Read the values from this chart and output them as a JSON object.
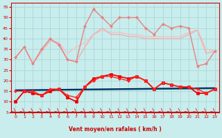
{
  "xlabel": "Vent moyen/en rafales ( km/h )",
  "xlim": [
    -0.5,
    23.5
  ],
  "ylim": [
    5,
    57
  ],
  "yticks": [
    5,
    10,
    15,
    20,
    25,
    30,
    35,
    40,
    45,
    50,
    55
  ],
  "xticks": [
    0,
    1,
    2,
    3,
    4,
    5,
    6,
    7,
    8,
    9,
    10,
    11,
    12,
    13,
    14,
    15,
    16,
    17,
    18,
    19,
    20,
    21,
    22,
    23
  ],
  "background_color": "#c9ecec",
  "grid_color": "#a8d8d8",
  "series": [
    {
      "name": "light_pink_area1",
      "color": "#f5c0c0",
      "linewidth": 1.0,
      "marker": null,
      "zorder": 2,
      "data_x": [
        0,
        1,
        2,
        3,
        4,
        5,
        6,
        7,
        8,
        9,
        10,
        11,
        12,
        13,
        14,
        15,
        16,
        17,
        18,
        19,
        20,
        21,
        22,
        23
      ],
      "data_y": [
        31,
        36,
        28,
        34,
        39,
        38,
        33,
        36,
        38,
        42,
        44,
        43,
        43,
        42,
        42,
        41,
        41,
        41,
        41,
        41,
        43,
        44,
        35,
        34
      ]
    },
    {
      "name": "light_pink_area2",
      "color": "#f0b0b0",
      "linewidth": 1.0,
      "marker": null,
      "zorder": 2,
      "data_x": [
        0,
        1,
        2,
        3,
        4,
        5,
        6,
        7,
        8,
        9,
        10,
        11,
        12,
        13,
        14,
        15,
        16,
        17,
        18,
        19,
        20,
        21,
        22,
        23
      ],
      "data_y": [
        31,
        36,
        28,
        34,
        39,
        38,
        30,
        29,
        36,
        42,
        45,
        42,
        42,
        41,
        41,
        40,
        40,
        40,
        40,
        40,
        42,
        44,
        33,
        34
      ]
    },
    {
      "name": "salmon_spiky",
      "color": "#e88080",
      "linewidth": 1.0,
      "marker": "D",
      "markersize": 2.0,
      "zorder": 3,
      "data_x": [
        0,
        1,
        2,
        3,
        4,
        5,
        6,
        7,
        8,
        9,
        10,
        11,
        12,
        13,
        14,
        15,
        16,
        17,
        18,
        19,
        20,
        21,
        22,
        23
      ],
      "data_y": [
        31,
        36,
        28,
        35,
        40,
        37,
        30,
        29,
        46,
        54,
        50,
        46,
        50,
        50,
        50,
        45,
        42,
        47,
        45,
        46,
        45,
        27,
        28,
        34
      ]
    },
    {
      "name": "dark_navy_flat",
      "color": "#000066",
      "linewidth": 1.3,
      "marker": null,
      "zorder": 4,
      "data_x": [
        0,
        23
      ],
      "data_y": [
        15.5,
        16.5
      ]
    },
    {
      "name": "dark_teal_flat",
      "color": "#006666",
      "linewidth": 1.0,
      "marker": null,
      "zorder": 4,
      "data_x": [
        0,
        23
      ],
      "data_y": [
        15.2,
        16.2
      ]
    },
    {
      "name": "red_lower_square",
      "color": "#ee0000",
      "linewidth": 1.3,
      "marker": "s",
      "markersize": 2.5,
      "zorder": 5,
      "data_x": [
        0,
        1,
        2,
        3,
        4,
        5,
        6,
        7,
        8,
        9,
        10,
        11,
        12,
        13,
        14,
        15,
        16,
        17,
        18,
        19,
        20,
        21,
        22,
        23
      ],
      "data_y": [
        10,
        15,
        14,
        13,
        15,
        16,
        12,
        10,
        17,
        21,
        22,
        23,
        22,
        21,
        22,
        20,
        16,
        19,
        18,
        17,
        17,
        14,
        14,
        16
      ]
    },
    {
      "name": "red_lower_diamond",
      "color": "#ff2222",
      "linewidth": 1.0,
      "marker": "D",
      "markersize": 2.0,
      "zorder": 5,
      "data_x": [
        0,
        1,
        2,
        3,
        4,
        5,
        6,
        7,
        8,
        9,
        10,
        11,
        12,
        13,
        14,
        15,
        16,
        17,
        18,
        19,
        20,
        21,
        22,
        23
      ],
      "data_y": [
        15,
        15,
        15,
        13,
        16,
        16,
        13,
        12,
        17,
        20,
        22,
        22,
        21,
        20,
        22,
        20,
        16,
        19,
        18,
        17,
        17,
        16,
        14,
        16
      ]
    }
  ]
}
